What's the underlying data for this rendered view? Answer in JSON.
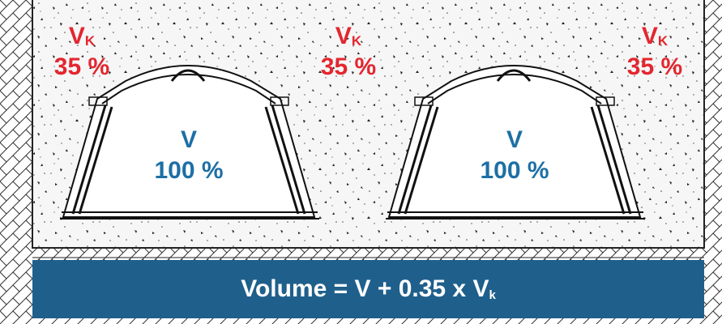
{
  "labels": {
    "vk_left": {
      "symbol": "V",
      "subscript": "K",
      "percent": "35 %"
    },
    "vk_mid": {
      "symbol": "V",
      "subscript": "K",
      "percent": "35 %"
    },
    "vk_right": {
      "symbol": "V",
      "subscript": "K",
      "percent": "35 %"
    },
    "v_left": {
      "symbol": "V",
      "percent": "100 %"
    },
    "v_right": {
      "symbol": "V",
      "percent": "100 %"
    }
  },
  "formula": {
    "text": "Volume = V + 0.35 x V",
    "subscript": "k"
  },
  "colors": {
    "red": "#e3262f",
    "blue": "#1d6fa5",
    "bar": "#1f5f8b",
    "gravel": "#f4f4f4"
  }
}
